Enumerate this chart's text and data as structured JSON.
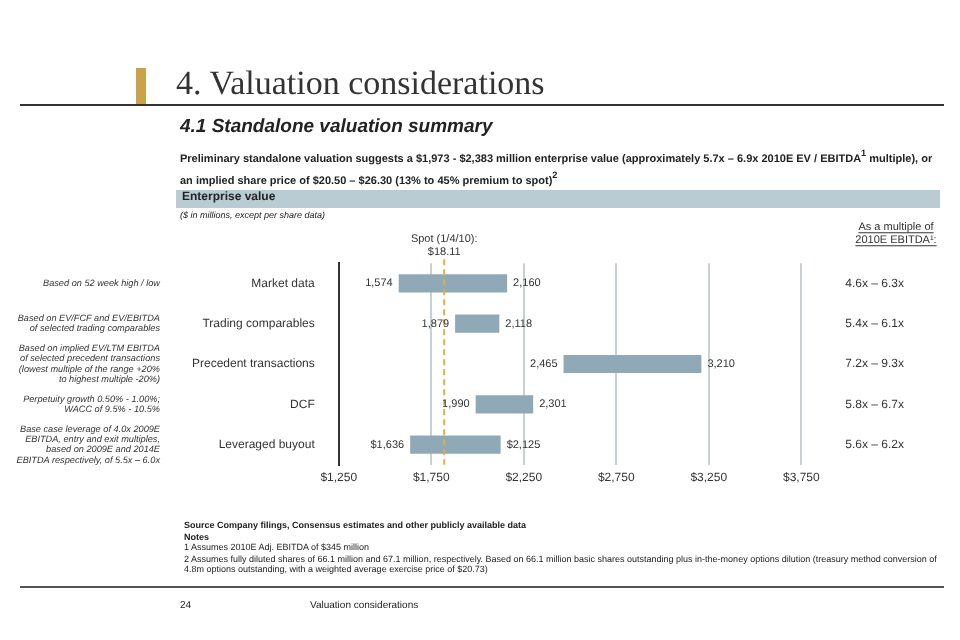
{
  "chart_data": {
    "type": "bar",
    "orientation": "horizontal",
    "title": "4. Valuation considerations",
    "subtitle": "4.1 Standalone valuation summary",
    "categories": [
      "Market data",
      "Trading comparables",
      "Precedent transactions",
      "DCF",
      "Leveraged buyout"
    ],
    "y2_categories": [
      "4.6x – 6.3x",
      "5.4x – 6.1x",
      "7.2x – 9.3x",
      "5.8x – 6.7x",
      "5.6x – 6.2x"
    ],
    "y2label": "As a multiple of 2010E EBITDA¹:",
    "base": [
      1574,
      1879,
      2465,
      1990,
      1636
    ],
    "values": [
      586,
      239,
      745,
      311,
      489
    ],
    "color": "#8fa9b6",
    "xlim": [
      1250,
      3750
    ],
    "xticks": [
      {
        "value": 1250,
        "label": "$1,250"
      },
      {
        "value": 1750,
        "label": "$1,750"
      },
      {
        "value": 2250,
        "label": "$2,250"
      },
      {
        "value": 2750,
        "label": "$2,750"
      },
      {
        "value": 3250,
        "label": "$3,250"
      },
      {
        "value": 3750,
        "label": "$3,750"
      }
    ],
    "grid": "x",
    "ref_lines": [
      {
        "axis": "x",
        "value": 1820,
        "color": "#e0b040",
        "line_style": "dashed"
      }
    ],
    "annotations": [
      "Preliminary standalone valuation suggests a $1,973 - $2,383 million enterprise value (approximately 5.7x – 6.9x 2010E EV / EBITDA$^{1}$ multiple), or an implied share price of $20.50 – $26.30 (13% to 45% premium to spot)$^{2}$",
      "Enterprise value",
      "($ in millions, except per share data)",
      "Source Company filings, Consensus estimates and other publicly available data",
      "Notes",
      "1  Assumes 2010E Adj. EBITDA of $345 million",
      "2  Assumes fully diluted shares of 66.1 million and 67.1 million, respectively. Based on 66.1 million basic shares outstanding plus in-the-money options dilution (treasury method conversion of 4.8m options outstanding, with a weighted average exercise price of $20.73)",
      "24",
      "Valuation considerations",
      "Spot (1/4/10): $18.11",
      "Based on 52 week high / low",
      "Based on EV/FCF and EV/EBITDA of selected trading comparables",
      "Based on implied EV/LTM EBITDA of selected precedent transactions (lowest multiple of the range +20% to highest multiple -20%)",
      "Perpetuity growth 0.50% - 1.00%; WACC of 9.5% - 10.5%",
      "Base case leverage of 4.0x 2009E EBITDA, entry and exit multiples, based on 2009E and 2014E EBITDA respectively, of 5.5x – 6.0x",
      {
        "text": "1,574",
        "x": 1574,
        "y": "Market data"
      },
      {
        "text": "2,160",
        "x": 2160,
        "y": "Market data"
      },
      {
        "text": "1,879",
        "x": 1879,
        "y": "Trading comparables"
      },
      {
        "text": "2,118",
        "x": 2118,
        "y": "Trading comparables"
      },
      {
        "text": "2,465",
        "x": 2465,
        "y": "Precedent transactions"
      },
      {
        "text": "3,210",
        "x": 3210,
        "y": "Precedent transactions"
      },
      {
        "text": "1,990",
        "x": 1990,
        "y": "DCF"
      },
      {
        "text": "2,301",
        "x": 2301,
        "y": "DCF"
      },
      {
        "text": "$1,636",
        "x": 1636,
        "y": "Leveraged buyout"
      },
      {
        "text": "$2,125",
        "x": 2125,
        "y": "Leveraged buyout"
      }
    ]
  }
}
